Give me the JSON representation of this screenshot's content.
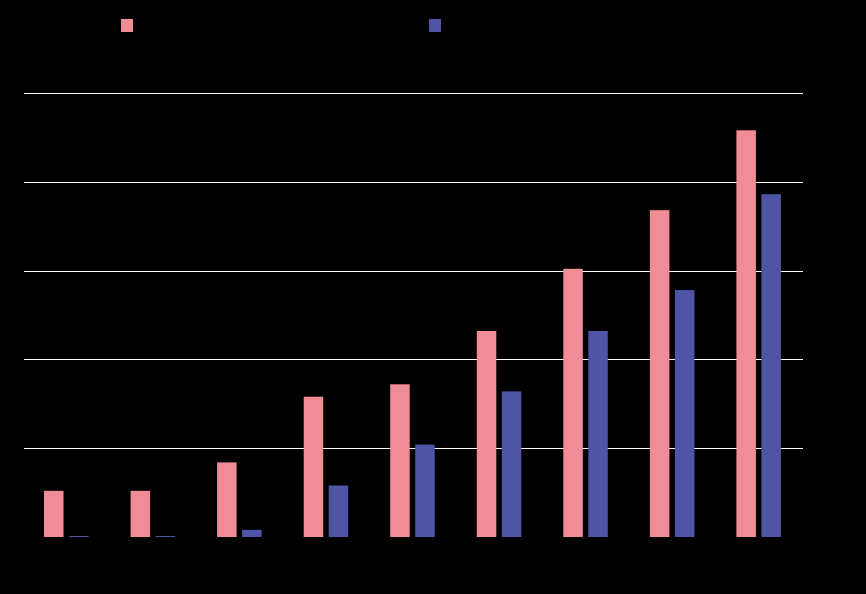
{
  "chart_data": {
    "type": "bar",
    "categories": [
      "",
      "",
      "",
      "",
      "",
      "",
      "",
      "",
      ""
    ],
    "series": [
      {
        "values": [
          26,
          26,
          42,
          79,
          86,
          116,
          151,
          184,
          229
        ],
        "color": "#F08C96"
      },
      {
        "values": [
          0.4,
          0.4,
          4,
          29,
          52,
          82,
          116,
          139,
          193
        ],
        "color": "#4E55A7"
      }
    ],
    "ylim": [
      0,
      250
    ],
    "yticks": [
      0,
      50,
      100,
      150,
      200,
      250
    ],
    "grid": true,
    "legend_position": "top",
    "background": "#000000",
    "gridline_color": "#FFFFFF"
  }
}
